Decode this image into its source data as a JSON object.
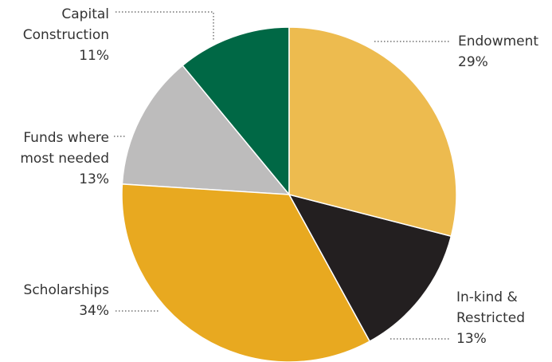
{
  "chart_data": {
    "type": "pie",
    "categories": [
      [
        "Endowment"
      ],
      [
        "In-kind &",
        "Restricted"
      ],
      [
        "Scholarships"
      ],
      [
        "Funds where",
        "most needed"
      ],
      [
        "Capital",
        "Construction"
      ]
    ],
    "values": [
      29,
      13,
      34,
      13,
      11
    ],
    "value_labels": [
      "29%",
      "13%",
      "34%",
      "13%",
      "11%"
    ],
    "colors": [
      "#edbb4f",
      "#231f20",
      "#e8a920",
      "#bdbcbc",
      "#006845"
    ]
  }
}
